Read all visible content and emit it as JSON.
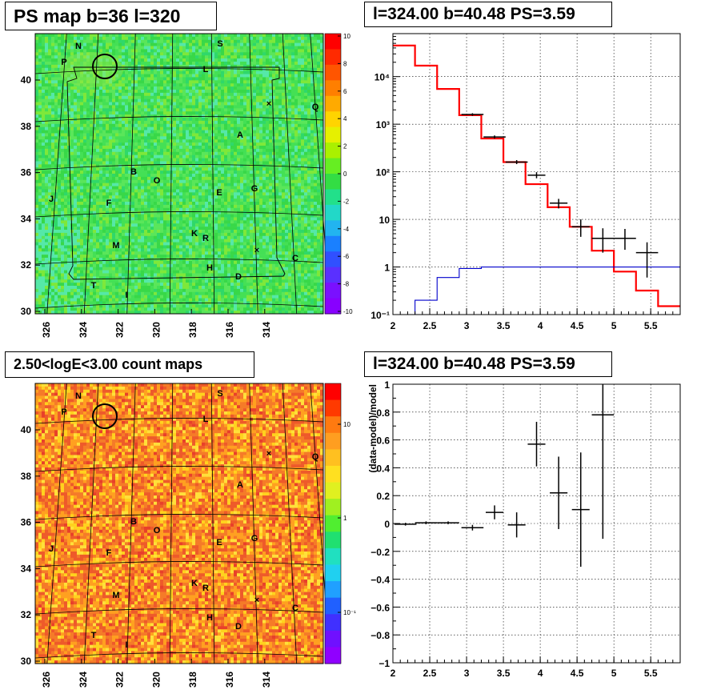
{
  "panels": {
    "ps_map": {
      "title": "PS map b=36 l=320",
      "x_ticks": [
        "326",
        "324",
        "322",
        "320",
        "318",
        "316",
        "314"
      ],
      "y_ticks": [
        "30",
        "32",
        "34",
        "36",
        "38",
        "40"
      ],
      "palette_ticks": [
        "10",
        "8",
        "6",
        "4",
        "2",
        "0",
        "-2",
        "-4",
        "-6",
        "-8",
        "-10"
      ],
      "region_labels": [
        "N",
        "P",
        "S",
        "L",
        "Q",
        "A",
        "B",
        "O",
        "E",
        "G",
        "J",
        "F",
        "M",
        "K",
        "R",
        "C",
        "H",
        "D",
        "T",
        "I"
      ],
      "base_color": "#33dd44"
    },
    "spectrum": {
      "title": "l=324.00 b=40.48 PS=3.59"
    },
    "count_map": {
      "title": "2.50<logE<3.00 count maps",
      "x_ticks": [
        "326",
        "324",
        "322",
        "320",
        "318",
        "316",
        "314"
      ],
      "y_ticks": [
        "30",
        "32",
        "34",
        "36",
        "38",
        "40"
      ],
      "palette_ticks": [
        "10",
        "1",
        "10⁻¹"
      ],
      "region_labels": [
        "N",
        "P",
        "S",
        "L",
        "Q",
        "A",
        "B",
        "O",
        "E",
        "G",
        "J",
        "F",
        "M",
        "K",
        "R",
        "C",
        "H",
        "D",
        "T",
        "I"
      ],
      "base_color": "#f07a2a"
    },
    "residual": {
      "title": "l=324.00 b=40.48 PS=3.59"
    }
  },
  "chart_data": [
    {
      "type": "heatmap",
      "title": "PS map b=36 l=320",
      "x_range": [
        327,
        313
      ],
      "y_range": [
        30,
        42
      ],
      "x_tick_labels": [
        "326",
        "324",
        "322",
        "320",
        "318",
        "316",
        "314"
      ],
      "y_tick_labels": [
        "30",
        "32",
        "34",
        "36",
        "38",
        "40"
      ],
      "color_range": [
        -10,
        10
      ],
      "source_circle": {
        "l": 323.5,
        "b": 40.4
      }
    },
    {
      "type": "line",
      "title": "l=324.00 b=40.48 PS=3.59",
      "log_y": true,
      "xlim": [
        2,
        5.9
      ],
      "ylim": [
        0.1,
        80000
      ],
      "x_tick_labels": [
        "2",
        "2.5",
        "3",
        "3.5",
        "4",
        "4.5",
        "5",
        "5.5"
      ],
      "y_tick_labels": [
        "10⁻¹",
        "1",
        "10",
        "10²",
        "10³",
        "10⁴"
      ],
      "grid": true,
      "series": [
        {
          "color": "#ff0000",
          "edges": [
            2.0,
            2.3,
            2.6,
            2.9,
            3.2,
            3.5,
            3.8,
            4.1,
            4.4,
            4.7,
            5.0,
            5.3,
            5.6,
            5.9
          ],
          "values": [
            45000,
            17000,
            5500,
            1550,
            500,
            160,
            55,
            18,
            7,
            2.2,
            0.8,
            0.32,
            0.15
          ]
        },
        {
          "color": "#0000cc",
          "edges": [
            2.3,
            2.6,
            2.9,
            3.2,
            5.9
          ],
          "values": [
            0.2,
            0.6,
            0.93,
            1.0
          ]
        },
        {
          "color": "#000000",
          "points": [
            {
              "x": 3.08,
              "y": 1600,
              "ex": 0.15,
              "eyl": 1500,
              "eyh": 1700
            },
            {
              "x": 3.38,
              "y": 540,
              "ex": 0.15,
              "eyl": 500,
              "eyh": 580
            },
            {
              "x": 3.68,
              "y": 160,
              "ex": 0.15,
              "eyl": 145,
              "eyh": 176
            },
            {
              "x": 3.95,
              "y": 85,
              "ex": 0.12,
              "eyl": 73,
              "eyh": 98
            },
            {
              "x": 4.25,
              "y": 22,
              "ex": 0.12,
              "eyl": 17,
              "eyh": 27
            },
            {
              "x": 4.55,
              "y": 7,
              "ex": 0.12,
              "eyl": 4.3,
              "eyh": 10
            },
            {
              "x": 4.85,
              "y": 4,
              "ex": 0.15,
              "eyl": 2,
              "eyh": 6.5
            },
            {
              "x": 5.15,
              "y": 4,
              "ex": 0.15,
              "eyl": 2.3,
              "eyh": 6.3
            },
            {
              "x": 5.45,
              "y": 2,
              "ex": 0.15,
              "eyl": 0.6,
              "eyh": 3.3
            }
          ]
        }
      ]
    },
    {
      "type": "scatter",
      "title": "l=324.00 b=40.48 PS=3.59",
      "ylabel": "(data-model)/model",
      "xlim": [
        2,
        5.9
      ],
      "ylim": [
        -1,
        1
      ],
      "x_tick_labels": [
        "2",
        "2.5",
        "3",
        "3.5",
        "4",
        "4.5",
        "5",
        "5.5"
      ],
      "y_tick_labels": [
        "−1",
        "−0.8",
        "−0.6",
        "−0.4",
        "−0.2",
        "0",
        "0.2",
        "0.4",
        "0.6",
        "0.8",
        "1"
      ],
      "grid": true,
      "points": [
        {
          "x": 2.17,
          "y": -0.005,
          "ex": 0.15,
          "ey": 0.01
        },
        {
          "x": 2.45,
          "y": 0.005,
          "ex": 0.15,
          "ey": 0.01
        },
        {
          "x": 2.75,
          "y": 0.005,
          "ex": 0.15,
          "ey": 0.01
        },
        {
          "x": 3.08,
          "y": -0.03,
          "ex": 0.15,
          "ey": 0.02
        },
        {
          "x": 3.38,
          "y": 0.08,
          "ex": 0.12,
          "ey": 0.05
        },
        {
          "x": 3.68,
          "y": -0.01,
          "ex": 0.12,
          "ey": 0.09
        },
        {
          "x": 3.95,
          "y": 0.57,
          "ex": 0.12,
          "ey": 0.16
        },
        {
          "x": 4.25,
          "y": 0.22,
          "ex": 0.12,
          "ey": 0.26
        },
        {
          "x": 4.55,
          "y": 0.1,
          "ex": 0.12,
          "ey": 0.41
        },
        {
          "x": 4.85,
          "y": 0.78,
          "ex": 0.15,
          "ey": 0.89
        }
      ]
    }
  ]
}
